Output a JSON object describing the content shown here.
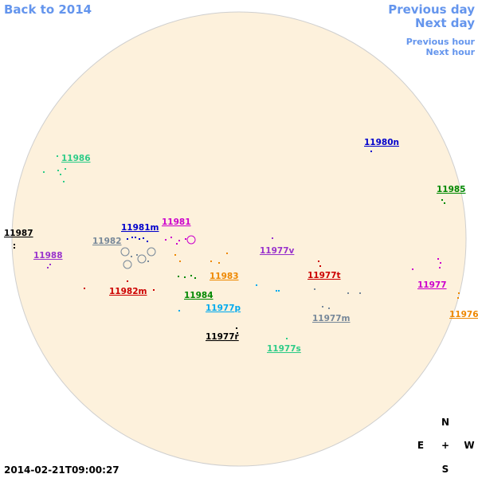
{
  "nav": {
    "back": "Back to 2014",
    "previous_day": "Previous day",
    "next_day": "Next day",
    "previous_hour": "Previous hour",
    "next_hour": "Next hour"
  },
  "regions": [
    {
      "label": "11986",
      "color": "#2ecc88"
    },
    {
      "label": "11980n",
      "color": "#0000cc"
    },
    {
      "label": "11985",
      "color": "#008800"
    },
    {
      "label": "11987",
      "color": "#000000"
    },
    {
      "label": "11981m",
      "color": "#0000cc"
    },
    {
      "label": "11981",
      "color": "#cc00cc"
    },
    {
      "label": "11982",
      "color": "#778899"
    },
    {
      "label": "11988",
      "color": "#9933cc"
    },
    {
      "label": "11977v",
      "color": "#9933cc"
    },
    {
      "label": "11983",
      "color": "#ee8800"
    },
    {
      "label": "11977t",
      "color": "#cc0000"
    },
    {
      "label": "11982m",
      "color": "#cc0000"
    },
    {
      "label": "11984",
      "color": "#008800"
    },
    {
      "label": "11977",
      "color": "#cc00cc"
    },
    {
      "label": "11977p",
      "color": "#00aaee"
    },
    {
      "label": "11977m",
      "color": "#778899"
    },
    {
      "label": "11976",
      "color": "#ee8800"
    },
    {
      "label": "11977r",
      "color": "#000000"
    },
    {
      "label": "11977s",
      "color": "#2ecc88"
    }
  ],
  "compass": {
    "north": "N",
    "east": "E",
    "center": "+",
    "west": "W",
    "south": "S"
  },
  "timestamp": "2014-02-21T09:00:27"
}
